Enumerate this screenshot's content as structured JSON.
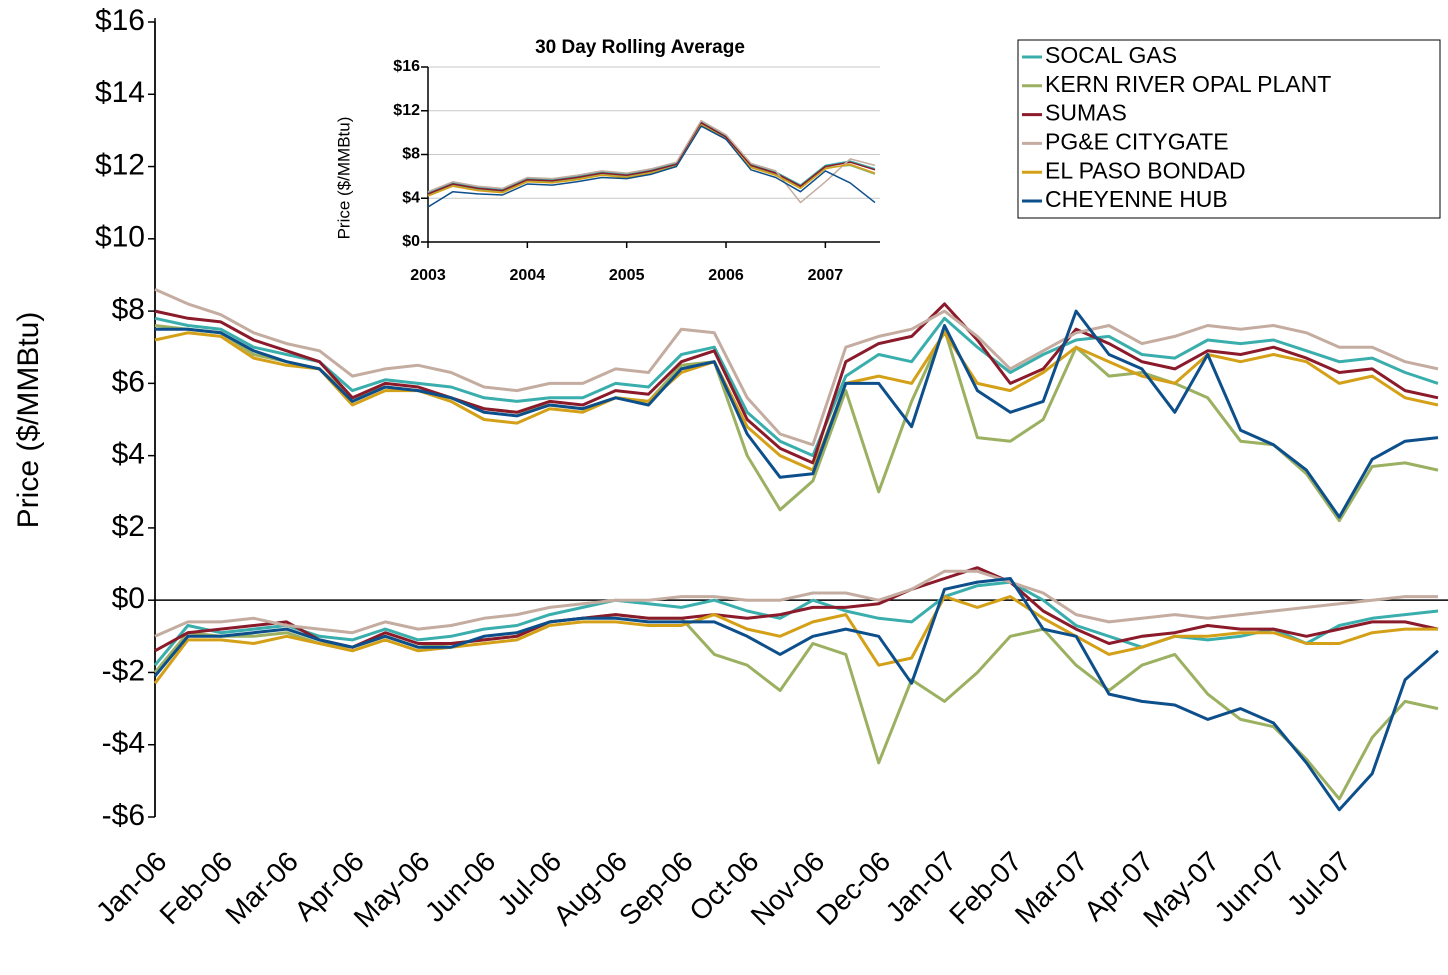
{
  "chart_data": [
    {
      "type": "line",
      "y_label": "Price ($/MMBtu)",
      "categories": [
        "Jan-06",
        null,
        "Feb-06",
        null,
        "Mar-06",
        null,
        "Apr-06",
        null,
        "May-06",
        null,
        "Jun-06",
        null,
        "Jul-06",
        null,
        "Aug-06",
        null,
        "Sep-06",
        null,
        "Oct-06",
        null,
        "Nov-06",
        null,
        "Dec-06",
        null,
        "Jan-07",
        null,
        "Feb-07",
        null,
        "Mar-07",
        null,
        "Apr-07",
        null,
        "May-07",
        null,
        "Jun-07",
        null,
        "Jul-07",
        null,
        null,
        null
      ],
      "ylim": [
        -6,
        16
      ],
      "yticks": [
        {
          "value": -6,
          "label": "-$6"
        },
        {
          "value": -4,
          "label": "-$4"
        },
        {
          "value": -2,
          "label": "-$2"
        },
        {
          "value": 0,
          "label": "$0"
        },
        {
          "value": 2,
          "label": "$2"
        },
        {
          "value": 4,
          "label": "$4"
        },
        {
          "value": 6,
          "label": "$6"
        },
        {
          "value": 8,
          "label": "$8"
        },
        {
          "value": 10,
          "label": "$10"
        },
        {
          "value": 12,
          "label": "$12"
        },
        {
          "value": 14,
          "label": "$14"
        },
        {
          "value": 16,
          "label": "$16"
        }
      ],
      "grid": false,
      "legend": "upper right",
      "series": [
        {
          "name": "SOCAL GAS",
          "color": "#3aaeac",
          "values": [
            7.8,
            7.6,
            7.5,
            7.0,
            6.8,
            6.6,
            5.8,
            6.1,
            6.0,
            5.9,
            5.6,
            5.5,
            5.6,
            5.6,
            6.0,
            5.9,
            6.8,
            7.0,
            5.2,
            4.4,
            4.0,
            6.2,
            6.8,
            6.6,
            7.8,
            7.0,
            6.3,
            6.8,
            7.2,
            7.3,
            6.8,
            6.7,
            7.2,
            7.1,
            7.2,
            6.9,
            6.6,
            6.7,
            6.3,
            6.0
          ],
          "basis": [
            -1.8,
            -0.7,
            -0.9,
            -0.8,
            -0.7,
            -1.0,
            -1.1,
            -0.8,
            -1.1,
            -1.0,
            -0.8,
            -0.7,
            -0.4,
            -0.2,
            0.0,
            -0.1,
            -0.2,
            0.0,
            -0.3,
            -0.5,
            0.0,
            -0.3,
            -0.5,
            -0.6,
            0.1,
            0.4,
            0.5,
            0.0,
            -0.7,
            -1.0,
            -1.3,
            -1.0,
            -1.1,
            -1.0,
            -0.8,
            -1.2,
            -0.7,
            -0.5,
            -0.4,
            -0.3
          ]
        },
        {
          "name": "KERN RIVER OPAL PLANT",
          "color": "#9bb060",
          "values": [
            7.6,
            7.5,
            7.4,
            6.8,
            6.6,
            6.4,
            5.6,
            5.9,
            5.8,
            5.6,
            5.3,
            5.2,
            5.4,
            5.3,
            5.6,
            5.5,
            6.5,
            6.6,
            4.0,
            2.5,
            3.3,
            5.8,
            3.0,
            5.5,
            7.5,
            4.5,
            4.4,
            5.0,
            7.0,
            6.2,
            6.3,
            6.0,
            5.6,
            4.4,
            4.3,
            3.5,
            2.2,
            3.7,
            3.8,
            3.6
          ],
          "basis": [
            -2.0,
            -0.9,
            -1.0,
            -1.0,
            -0.9,
            -1.2,
            -1.3,
            -1.0,
            -1.3,
            -1.2,
            -1.1,
            -1.0,
            -0.6,
            -0.5,
            -0.4,
            -0.5,
            -0.5,
            -1.5,
            -1.8,
            -2.5,
            -1.2,
            -1.5,
            -4.5,
            -2.2,
            -2.8,
            -2.0,
            -1.0,
            -0.8,
            -1.8,
            -2.5,
            -1.8,
            -1.5,
            -2.6,
            -3.3,
            -3.5,
            -4.4,
            -5.5,
            -3.8,
            -2.8,
            -3.0
          ]
        },
        {
          "name": "SUMAS",
          "color": "#8b1a2a",
          "values": [
            8.0,
            7.8,
            7.7,
            7.2,
            6.9,
            6.6,
            5.6,
            6.0,
            5.9,
            5.6,
            5.3,
            5.2,
            5.5,
            5.4,
            5.8,
            5.7,
            6.6,
            6.9,
            5.0,
            4.2,
            3.8,
            6.6,
            7.1,
            7.3,
            8.2,
            7.2,
            6.0,
            6.4,
            7.5,
            7.1,
            6.6,
            6.4,
            6.9,
            6.8,
            7.0,
            6.7,
            6.3,
            6.4,
            5.8,
            5.6
          ],
          "basis": [
            -1.4,
            -0.9,
            -0.8,
            -0.7,
            -0.6,
            -1.1,
            -1.3,
            -0.9,
            -1.2,
            -1.2,
            -1.1,
            -1.0,
            -0.6,
            -0.5,
            -0.4,
            -0.5,
            -0.5,
            -0.4,
            -0.5,
            -0.4,
            -0.2,
            -0.2,
            -0.1,
            0.3,
            0.6,
            0.9,
            0.5,
            -0.3,
            -0.8,
            -1.2,
            -1.0,
            -0.9,
            -0.7,
            -0.8,
            -0.8,
            -1.0,
            -0.8,
            -0.6,
            -0.6,
            -0.8
          ]
        },
        {
          "name": "PG&E CITYGATE",
          "color": "#c4ada0",
          "values": [
            8.6,
            8.2,
            7.9,
            7.4,
            7.1,
            6.9,
            6.2,
            6.4,
            6.5,
            6.3,
            5.9,
            5.8,
            6.0,
            6.0,
            6.4,
            6.3,
            7.5,
            7.4,
            5.6,
            4.6,
            4.3,
            7.0,
            7.3,
            7.5,
            8.0,
            7.3,
            6.4,
            6.9,
            7.4,
            7.6,
            7.1,
            7.3,
            7.6,
            7.5,
            7.6,
            7.4,
            7.0,
            7.0,
            6.6,
            6.4
          ],
          "basis": [
            -1.0,
            -0.6,
            -0.6,
            -0.5,
            -0.7,
            -0.8,
            -0.9,
            -0.6,
            -0.8,
            -0.7,
            -0.5,
            -0.4,
            -0.2,
            -0.1,
            0.0,
            0.0,
            0.1,
            0.1,
            0.0,
            0.0,
            0.2,
            0.2,
            0.0,
            0.3,
            0.8,
            0.8,
            0.5,
            0.2,
            -0.4,
            -0.6,
            -0.5,
            -0.4,
            -0.5,
            -0.4,
            -0.3,
            -0.2,
            -0.1,
            0.0,
            0.1,
            0.1
          ]
        },
        {
          "name": "EL PASO BONDAD",
          "color": "#d4a017",
          "values": [
            7.2,
            7.4,
            7.3,
            6.7,
            6.5,
            6.4,
            5.4,
            5.8,
            5.8,
            5.5,
            5.0,
            4.9,
            5.3,
            5.2,
            5.6,
            5.5,
            6.3,
            6.6,
            4.8,
            4.0,
            3.6,
            6.0,
            6.2,
            6.0,
            7.4,
            6.0,
            5.8,
            6.3,
            7.0,
            6.6,
            6.2,
            6.0,
            6.8,
            6.6,
            6.8,
            6.6,
            6.0,
            6.2,
            5.6,
            5.4
          ],
          "basis": [
            -2.3,
            -1.1,
            -1.1,
            -1.2,
            -1.0,
            -1.2,
            -1.4,
            -1.1,
            -1.4,
            -1.3,
            -1.2,
            -1.1,
            -0.7,
            -0.6,
            -0.6,
            -0.7,
            -0.7,
            -0.4,
            -0.8,
            -1.0,
            -0.6,
            -0.4,
            -1.8,
            -1.6,
            0.1,
            -0.2,
            0.1,
            -0.5,
            -1.0,
            -1.5,
            -1.3,
            -1.0,
            -1.0,
            -0.9,
            -0.9,
            -1.2,
            -1.2,
            -0.9,
            -0.8,
            -0.8
          ]
        },
        {
          "name": "CHEYENNE HUB",
          "color": "#0d4f8b",
          "values": [
            7.5,
            7.5,
            7.4,
            6.9,
            6.6,
            6.4,
            5.5,
            5.9,
            5.8,
            5.6,
            5.2,
            5.1,
            5.4,
            5.3,
            5.6,
            5.4,
            6.4,
            6.6,
            4.6,
            3.4,
            3.5,
            6.0,
            6.0,
            4.8,
            7.6,
            5.8,
            5.2,
            5.5,
            8.0,
            6.8,
            6.4,
            5.2,
            6.8,
            4.7,
            4.3,
            3.6,
            2.3,
            3.9,
            4.4,
            4.5
          ],
          "basis": [
            -2.1,
            -1.0,
            -1.0,
            -0.9,
            -0.8,
            -1.1,
            -1.3,
            -1.0,
            -1.3,
            -1.3,
            -1.0,
            -0.9,
            -0.6,
            -0.5,
            -0.5,
            -0.6,
            -0.6,
            -0.6,
            -1.0,
            -1.5,
            -1.0,
            -0.8,
            -1.0,
            -2.3,
            0.3,
            0.5,
            0.6,
            -0.8,
            -1.0,
            -2.6,
            -2.8,
            -2.9,
            -3.3,
            -3.0,
            -3.4,
            -4.5,
            -5.8,
            -4.8,
            -2.2,
            -1.4
          ]
        }
      ]
    },
    {
      "type": "line",
      "title": "30 Day Rolling Average",
      "y_label": "Price ($/MMBtu)",
      "x": [
        2003,
        2003.25,
        2003.5,
        2003.75,
        2004,
        2004.25,
        2004.5,
        2004.75,
        2005,
        2005.25,
        2005.5,
        2005.75,
        2006,
        2006.25,
        2006.5,
        2006.75,
        2007,
        2007.25,
        2007.5
      ],
      "xlim": [
        2003,
        2007.55
      ],
      "xticks": [
        2003,
        2004,
        2005,
        2006,
        2007
      ],
      "ylim": [
        0,
        16
      ],
      "yticks": [
        {
          "value": 0,
          "label": "$0"
        },
        {
          "value": 4,
          "label": "$4"
        },
        {
          "value": 8,
          "label": "$8"
        },
        {
          "value": 12,
          "label": "$12"
        },
        {
          "value": 16,
          "label": "$16"
        }
      ],
      "grid": true,
      "series": [
        {
          "color": "#3aaeac",
          "values": [
            4.5,
            5.4,
            5.0,
            4.8,
            5.8,
            5.7,
            6.0,
            6.4,
            6.2,
            6.6,
            7.2,
            11.0,
            9.7,
            7.1,
            6.4,
            5.2,
            7.0,
            7.4,
            6.7
          ]
        },
        {
          "color": "#9bb060",
          "values": [
            4.3,
            5.2,
            4.8,
            4.6,
            5.6,
            5.5,
            5.8,
            6.2,
            6.0,
            6.4,
            7.0,
            10.8,
            9.5,
            6.9,
            6.2,
            5.0,
            6.8,
            7.0,
            6.2
          ]
        },
        {
          "color": "#8b1a2a",
          "values": [
            4.4,
            5.3,
            4.9,
            4.7,
            5.7,
            5.6,
            5.9,
            6.3,
            6.1,
            6.5,
            7.1,
            10.9,
            9.6,
            7.0,
            6.3,
            5.1,
            6.9,
            7.3,
            6.6
          ]
        },
        {
          "color": "#c4ada0",
          "values": [
            4.6,
            5.5,
            5.1,
            4.9,
            5.9,
            5.8,
            6.1,
            6.5,
            6.3,
            6.7,
            7.3,
            11.1,
            9.8,
            7.2,
            6.5,
            3.6,
            5.5,
            7.6,
            7.0
          ]
        },
        {
          "color": "#d4a017",
          "values": [
            4.2,
            5.1,
            4.7,
            4.5,
            5.5,
            5.4,
            5.7,
            6.1,
            5.9,
            6.3,
            6.9,
            10.7,
            9.4,
            6.8,
            6.1,
            4.9,
            6.7,
            7.1,
            6.3
          ]
        },
        {
          "color": "#0d4f8b",
          "values": [
            3.2,
            4.6,
            4.4,
            4.3,
            5.3,
            5.2,
            5.5,
            5.9,
            5.8,
            6.2,
            6.9,
            10.6,
            9.4,
            6.6,
            5.9,
            4.6,
            6.5,
            5.4,
            3.6
          ]
        }
      ]
    }
  ]
}
